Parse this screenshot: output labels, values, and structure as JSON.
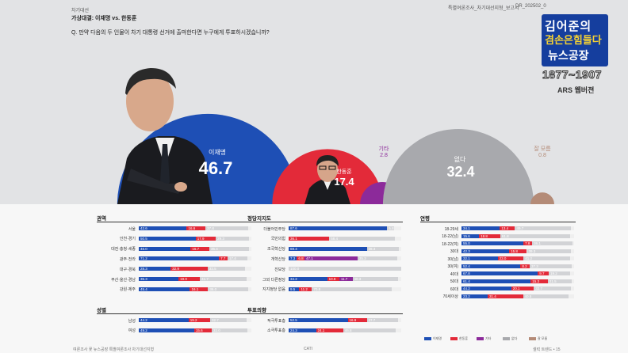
{
  "header": {
    "section": "차기대선",
    "title": "가상대결: 이재명 vs. 한동훈",
    "question": "Q. 만약 다음의 두 인물이 차기 대통령 선거에 출마한다면 누구에게 투표하시겠습니까?",
    "report_tag": "특별여론조사_차기대선지형_보고서",
    "report_code": "DR_202502_0"
  },
  "logo": {
    "line1": "김어준의",
    "line2": "겸손은힘들다",
    "line3": "뉴스공장",
    "years": "1877~1907",
    "survey_type": "ARS 웹버젼"
  },
  "colors": {
    "lee": "#1e4fb5",
    "han": "#e32a39",
    "other": "#8c2a9a",
    "none": "#a8a9ad",
    "unknown": "#b48b77",
    "undecided": "#d2d3d6"
  },
  "chart_data": [
    {
      "type": "bubble",
      "title": "가상대결: 이재명 vs. 한동훈",
      "entries": [
        {
          "name": "이재명",
          "value": 46.7
        },
        {
          "name": "한동훈",
          "value": 17.4
        },
        {
          "name": "기타",
          "value": 2.8
        },
        {
          "name": "없다",
          "value": 32.4
        },
        {
          "name": "잘 모름",
          "value": 0.8
        }
      ]
    },
    {
      "type": "stacked_bar",
      "title": "권역",
      "rows": [
        {
          "label": "서울",
          "values": [
            42.6,
            16.6,
            0,
            37.8
          ]
        },
        {
          "label": "인천·경기",
          "values": [
            50.5,
            17.9,
            0,
            29.3
          ]
        },
        {
          "label": "대전·충청·세종",
          "values": [
            46.0,
            16.7,
            0,
            35.4
          ]
        },
        {
          "label": "광주·전라",
          "values": [
            71.2,
            7.7,
            0,
            17.4
          ]
        },
        {
          "label": "대구·경북",
          "values": [
            28.3,
            32.9,
            0,
            33.5
          ]
        },
        {
          "label": "부산·울산·경남",
          "values": [
            35.3,
            19.0,
            0,
            41.7
          ]
        },
        {
          "label": "강원·제주",
          "values": [
            45.4,
            16.1,
            0,
            36.0
          ]
        }
      ]
    },
    {
      "type": "stacked_bar",
      "title": "성별",
      "rows": [
        {
          "label": "남성",
          "values": [
            44.2,
            19.2,
            0,
            32.7
          ]
        },
        {
          "label": "여성",
          "values": [
            49.2,
            15.6,
            0,
            32.0
          ]
        }
      ]
    },
    {
      "type": "stacked_bar",
      "title": "정당지지도",
      "rows": [
        {
          "label": "더불어민주당",
          "values": [
            87.6,
            0,
            0,
            5.8
          ]
        },
        {
          "label": "국민의힘",
          "values": [
            0,
            36.1,
            0,
            58.4
          ]
        },
        {
          "label": "조국혁신당",
          "values": [
            69.4,
            0,
            0,
            28.4
          ]
        },
        {
          "label": "개혁신당",
          "values": [
            7.3,
            6.8,
            47.1,
            35.3
          ]
        },
        {
          "label": "진보당",
          "values": [
            0,
            0,
            0,
            100.0
          ]
        },
        {
          "label": "그외 다른정당",
          "values": [
            34.2,
            10.8,
            11.7,
            40.3
          ]
        },
        {
          "label": "지지정당 없음",
          "values": [
            9.5,
            11.2,
            0,
            70.8
          ]
        }
      ]
    },
    {
      "type": "stacked_bar",
      "title": "투표의향",
      "rows": [
        {
          "label": "적극투표층",
          "values": [
            52.5,
            16.9,
            0,
            27.7
          ]
        },
        {
          "label": "소극투표층",
          "values": [
            24.3,
            24.1,
            0,
            46.8
          ]
        }
      ]
    },
    {
      "type": "stacked_bar",
      "title": "연령",
      "rows": [
        {
          "label": "18-29세",
          "values": [
            34.1,
            13.4,
            0,
            49.7
          ]
        },
        {
          "label": "18-22(남)",
          "values": [
            15.6,
            18.8,
            0,
            61.8
          ]
        },
        {
          "label": "18-22(여)",
          "values": [
            55.0,
            7.8,
            0,
            36.1
          ]
        },
        {
          "label": "30대",
          "values": [
            42.3,
            15.8,
            0,
            39.3
          ]
        },
        {
          "label": "30(남)",
          "values": [
            32.1,
            23.0,
            0,
            41.2
          ]
        },
        {
          "label": "30(여)",
          "values": [
            52.4,
            8.2,
            0,
            37.3
          ]
        },
        {
          "label": "40대",
          "values": [
            67.8,
            9.7,
            0,
            19.2
          ]
        },
        {
          "label": "50대",
          "values": [
            61.4,
            15.3,
            0,
            21.5
          ]
        },
        {
          "label": "60대",
          "values": [
            44.2,
            20.1,
            0,
            32.7
          ]
        },
        {
          "label": "70세이상",
          "values": [
            23.2,
            31.4,
            0,
            40.5
          ]
        }
      ]
    }
  ],
  "legend": [
    "이재명",
    "한동훈",
    "기타",
    "없다",
    "잘 모름"
  ],
  "footer": {
    "left": "여론조사 꽃 뉴스공장 특별여론조사 차기대선지형",
    "center": "CATI",
    "right": "셀럭 트렌드 • 15"
  }
}
